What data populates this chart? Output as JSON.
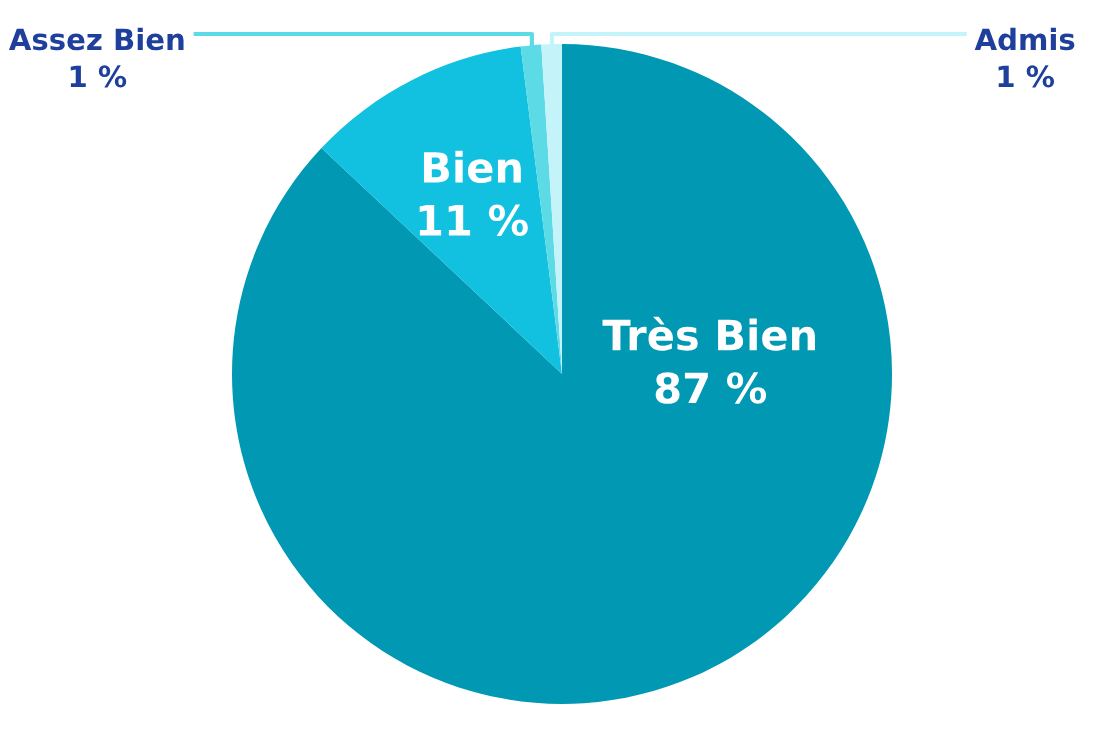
{
  "chart_data": {
    "type": "pie",
    "categories": [
      "Très Bien",
      "Bien",
      "Assez Bien",
      "Admis"
    ],
    "values": [
      87,
      11,
      1,
      1
    ],
    "colors": [
      "#0098b2",
      "#12c0e0",
      "#5cdae6",
      "#c4f4fa"
    ],
    "value_labels": [
      "87 %",
      "11 %",
      "1 %",
      "1 %"
    ],
    "legend": false
  }
}
